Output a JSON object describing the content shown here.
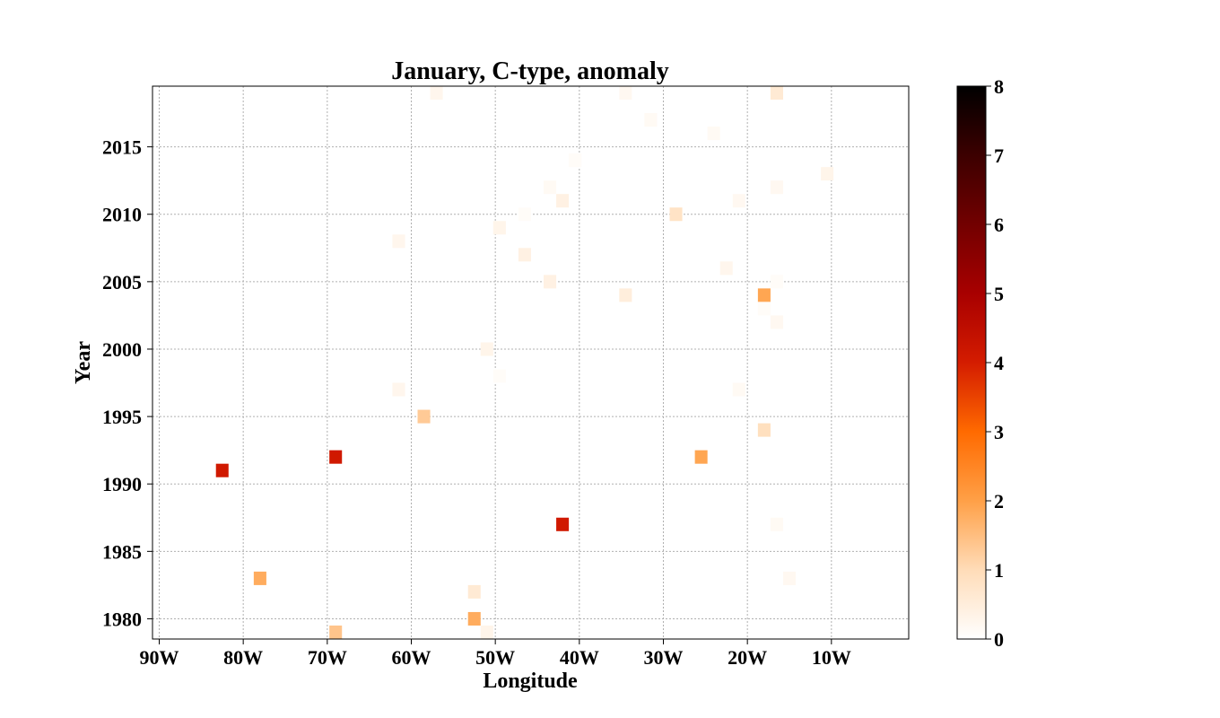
{
  "chart_data": {
    "type": "heatmap",
    "title": "January, C-type, anomaly",
    "xlabel": "Longitude",
    "ylabel": "Year",
    "xlim": [
      -90.8,
      -0.8
    ],
    "ylim": [
      1978.5,
      2019.5
    ],
    "x_ticks": [
      {
        "value": -90,
        "label": "90W"
      },
      {
        "value": -80,
        "label": "80W"
      },
      {
        "value": -70,
        "label": "70W"
      },
      {
        "value": -60,
        "label": "60W"
      },
      {
        "value": -50,
        "label": "50W"
      },
      {
        "value": -40,
        "label": "40W"
      },
      {
        "value": -30,
        "label": "30W"
      },
      {
        "value": -20,
        "label": "20W"
      },
      {
        "value": -10,
        "label": "10W"
      }
    ],
    "y_ticks": [
      {
        "value": 1980,
        "label": "1980"
      },
      {
        "value": 1985,
        "label": "1985"
      },
      {
        "value": 1990,
        "label": "1990"
      },
      {
        "value": 1995,
        "label": "1995"
      },
      {
        "value": 2000,
        "label": "2000"
      },
      {
        "value": 2005,
        "label": "2005"
      },
      {
        "value": 2010,
        "label": "2010"
      },
      {
        "value": 2015,
        "label": "2015"
      }
    ],
    "grid": true,
    "colorscale": "gist_heat_r",
    "colorbar": {
      "min": 0,
      "max": 8,
      "ticks": [
        "0",
        "1",
        "2",
        "3",
        "4",
        "5",
        "6",
        "7",
        "8"
      ],
      "colors": [
        "#ffffff",
        "#ffdcb8",
        "#ffa047",
        "#ff6a00",
        "#d41c00",
        "#a80000",
        "#720000",
        "#3c0000",
        "#000000"
      ]
    },
    "points": [
      {
        "lon": -57,
        "year": 2019,
        "value": 0.25
      },
      {
        "lon": -34.5,
        "year": 2019,
        "value": 0.2
      },
      {
        "lon": -16.5,
        "year": 2019,
        "value": 0.6
      },
      {
        "lon": -31.5,
        "year": 2017,
        "value": 0.15
      },
      {
        "lon": -24,
        "year": 2016,
        "value": 0.15
      },
      {
        "lon": -40.5,
        "year": 2014,
        "value": 0.1
      },
      {
        "lon": -10.5,
        "year": 2013,
        "value": 0.3
      },
      {
        "lon": -43.5,
        "year": 2012,
        "value": 0.15
      },
      {
        "lon": -16.5,
        "year": 2012,
        "value": 0.2
      },
      {
        "lon": -42,
        "year": 2011,
        "value": 0.4
      },
      {
        "lon": -21,
        "year": 2011,
        "value": 0.2
      },
      {
        "lon": -46.5,
        "year": 2010,
        "value": 0.1
      },
      {
        "lon": -28.5,
        "year": 2010,
        "value": 0.8
      },
      {
        "lon": -49.5,
        "year": 2009,
        "value": 0.3
      },
      {
        "lon": -61.5,
        "year": 2008,
        "value": 0.25
      },
      {
        "lon": -46.5,
        "year": 2007,
        "value": 0.4
      },
      {
        "lon": -22.5,
        "year": 2006,
        "value": 0.25
      },
      {
        "lon": -43.5,
        "year": 2005,
        "value": 0.4
      },
      {
        "lon": -16.5,
        "year": 2005,
        "value": 0.1
      },
      {
        "lon": -34.5,
        "year": 2004,
        "value": 0.5
      },
      {
        "lon": -18,
        "year": 2004,
        "value": 1.9
      },
      {
        "lon": -18,
        "year": 2003,
        "value": 0.1
      },
      {
        "lon": -16.5,
        "year": 2002,
        "value": 0.2
      },
      {
        "lon": -51,
        "year": 2000,
        "value": 0.3
      },
      {
        "lon": -49.5,
        "year": 1998,
        "value": 0.1
      },
      {
        "lon": -61.5,
        "year": 1997,
        "value": 0.25
      },
      {
        "lon": -21,
        "year": 1997,
        "value": 0.15
      },
      {
        "lon": -58.5,
        "year": 1995,
        "value": 1.3
      },
      {
        "lon": -18,
        "year": 1994,
        "value": 0.9
      },
      {
        "lon": -69,
        "year": 1992,
        "value": 4.1
      },
      {
        "lon": -25.5,
        "year": 1992,
        "value": 1.9
      },
      {
        "lon": -82.5,
        "year": 1991,
        "value": 4.1
      },
      {
        "lon": -42,
        "year": 1987,
        "value": 4.1
      },
      {
        "lon": -16.5,
        "year": 1987,
        "value": 0.15
      },
      {
        "lon": -78,
        "year": 1983,
        "value": 1.8
      },
      {
        "lon": -15,
        "year": 1983,
        "value": 0.2
      },
      {
        "lon": -52.5,
        "year": 1982,
        "value": 0.6
      },
      {
        "lon": -52.5,
        "year": 1980,
        "value": 1.8
      },
      {
        "lon": -69,
        "year": 1979,
        "value": 1.4
      },
      {
        "lon": -51,
        "year": 1979,
        "value": 0.3
      }
    ]
  }
}
